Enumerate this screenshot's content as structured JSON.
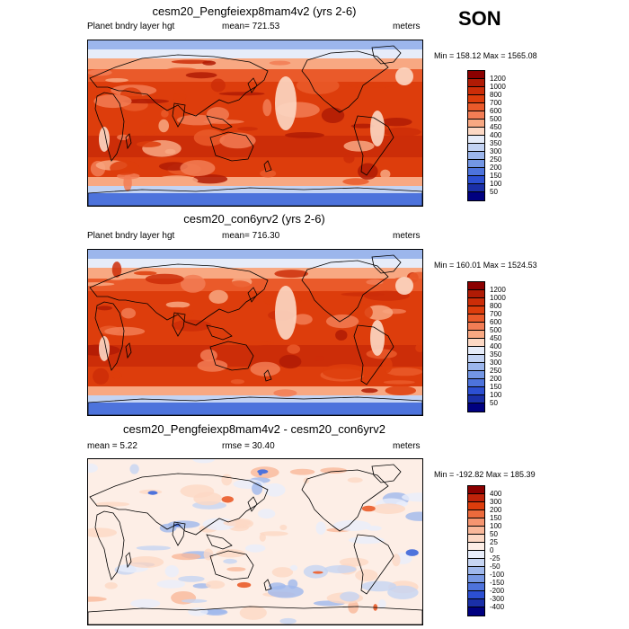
{
  "season": "SON",
  "panels": [
    {
      "title": "cesm20_Pengfeiexp8mam4v2 (yrs 2-6)",
      "left_label": "Planet bndry layer hgt",
      "center_label": "mean= 721.53",
      "right_label": "meters",
      "minmax": "Min = 158.12 Max = 1565.08",
      "scale": "abs",
      "levels": [
        "1200",
        "1000",
        "800",
        "700",
        "600",
        "500",
        "450",
        "400",
        "350",
        "300",
        "250",
        "200",
        "150",
        "100",
        "50"
      ],
      "colors": [
        "#8b0000",
        "#b01b05",
        "#cc2d08",
        "#dd3d0c",
        "#ea5a2a",
        "#f27d55",
        "#f8a882",
        "#fcd8c4",
        "#e6ecf9",
        "#c3d3f3",
        "#9cb6ec",
        "#7396e4",
        "#4d73dc",
        "#2c4fd2",
        "#1a2fa8",
        "#000080"
      ]
    },
    {
      "title": "cesm20_con6yrv2 (yrs 2-6)",
      "left_label": "Planet bndry layer hgt",
      "center_label": "mean= 716.30",
      "right_label": "meters",
      "minmax": "Min = 160.01 Max = 1524.53",
      "scale": "abs",
      "levels": [
        "1200",
        "1000",
        "800",
        "700",
        "600",
        "500",
        "450",
        "400",
        "350",
        "300",
        "250",
        "200",
        "150",
        "100",
        "50"
      ],
      "colors": [
        "#8b0000",
        "#b01b05",
        "#cc2d08",
        "#dd3d0c",
        "#ea5a2a",
        "#f27d55",
        "#f8a882",
        "#fcd8c4",
        "#e6ecf9",
        "#c3d3f3",
        "#9cb6ec",
        "#7396e4",
        "#4d73dc",
        "#2c4fd2",
        "#1a2fa8",
        "#000080"
      ]
    },
    {
      "title": "cesm20_Pengfeiexp8mam4v2 - cesm20_con6yrv2",
      "left_label": "mean =   5.22",
      "center_label": "rmse =  30.40",
      "right_label": "meters",
      "minmax": "Min = -192.82 Max = 185.39",
      "scale": "diff",
      "levels": [
        "400",
        "300",
        "200",
        "150",
        "100",
        "50",
        "25",
        "0",
        "-25",
        "-50",
        "-100",
        "-150",
        "-200",
        "-300",
        "-400"
      ],
      "colors": [
        "#8b0000",
        "#c0230a",
        "#dd3d0c",
        "#ec6a3c",
        "#f59570",
        "#f9b89a",
        "#fcd8c4",
        "#fdeee6",
        "#e8eefb",
        "#c6d5f3",
        "#9fb8ec",
        "#7798e4",
        "#4e73dc",
        "#2c4fd2",
        "#1a2fa8",
        "#000080"
      ]
    }
  ]
}
